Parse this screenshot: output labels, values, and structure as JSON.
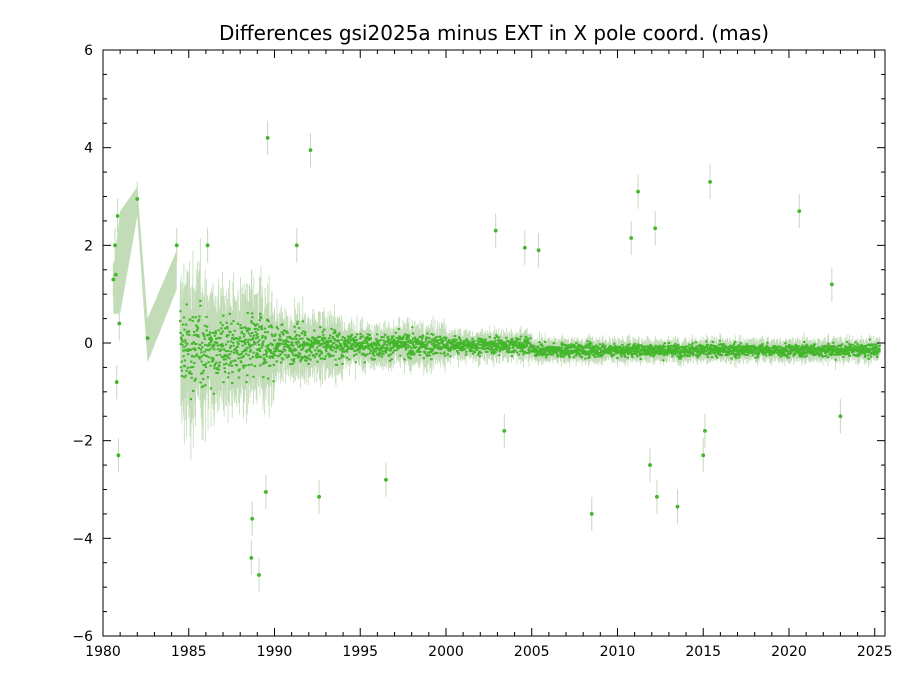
{
  "chart_data": {
    "type": "scatter",
    "title": "Differences gsi2025a minus EXT in X pole coord. (mas)",
    "xlabel": "",
    "ylabel": "",
    "xlim": [
      1980,
      2025.6
    ],
    "ylim": [
      -6,
      6
    ],
    "x_ticks": [
      "1980",
      "1985",
      "1990",
      "1995",
      "2000",
      "2005",
      "2010",
      "2015",
      "2020",
      "2025"
    ],
    "y_ticks": [
      "−6",
      "−4",
      "−2",
      "0",
      "2",
      "4",
      "6"
    ],
    "grid": false,
    "colors": {
      "point": "#44b62c",
      "error_bar": "#c2dcb8",
      "axis": "#000000"
    },
    "series": [
      {
        "points": [
          {
            "x": 1980.6,
            "y": 1.3
          },
          {
            "x": 1980.7,
            "y": 2.0
          },
          {
            "x": 1980.75,
            "y": 1.4
          },
          {
            "x": 1980.8,
            "y": -0.8
          },
          {
            "x": 1980.85,
            "y": 2.6
          },
          {
            "x": 1980.9,
            "y": -2.3
          },
          {
            "x": 1980.95,
            "y": 0.4
          },
          {
            "x": 1982.0,
            "y": 2.95
          },
          {
            "x": 1982.6,
            "y": 0.1
          },
          {
            "x": 1984.3,
            "y": 2.0
          },
          {
            "x": 1986.1,
            "y": 2.0
          },
          {
            "x": 1988.7,
            "y": -3.6
          },
          {
            "x": 1988.65,
            "y": -4.4
          },
          {
            "x": 1989.1,
            "y": -4.75
          },
          {
            "x": 1989.5,
            "y": -3.05
          },
          {
            "x": 1989.6,
            "y": 4.2
          },
          {
            "x": 1992.1,
            "y": 3.95
          },
          {
            "x": 1991.3,
            "y": 2.0
          },
          {
            "x": 1992.6,
            "y": -3.15
          },
          {
            "x": 1996.5,
            "y": -2.8
          },
          {
            "x": 2002.9,
            "y": 2.3
          },
          {
            "x": 2003.4,
            "y": -1.8
          },
          {
            "x": 2004.6,
            "y": 1.95
          },
          {
            "x": 2005.4,
            "y": 1.9
          },
          {
            "x": 2008.5,
            "y": -3.5
          },
          {
            "x": 2010.8,
            "y": 2.15
          },
          {
            "x": 2011.2,
            "y": 3.1
          },
          {
            "x": 2011.9,
            "y": -2.5
          },
          {
            "x": 2012.2,
            "y": 2.35
          },
          {
            "x": 2012.3,
            "y": -3.15
          },
          {
            "x": 2013.5,
            "y": -3.35
          },
          {
            "x": 2015.0,
            "y": -2.3
          },
          {
            "x": 2015.1,
            "y": -1.8
          },
          {
            "x": 2015.4,
            "y": 3.3
          },
          {
            "x": 2020.6,
            "y": 2.7
          },
          {
            "x": 2022.5,
            "y": 1.2
          },
          {
            "x": 2023.0,
            "y": -1.5
          }
        ]
      }
    ]
  }
}
